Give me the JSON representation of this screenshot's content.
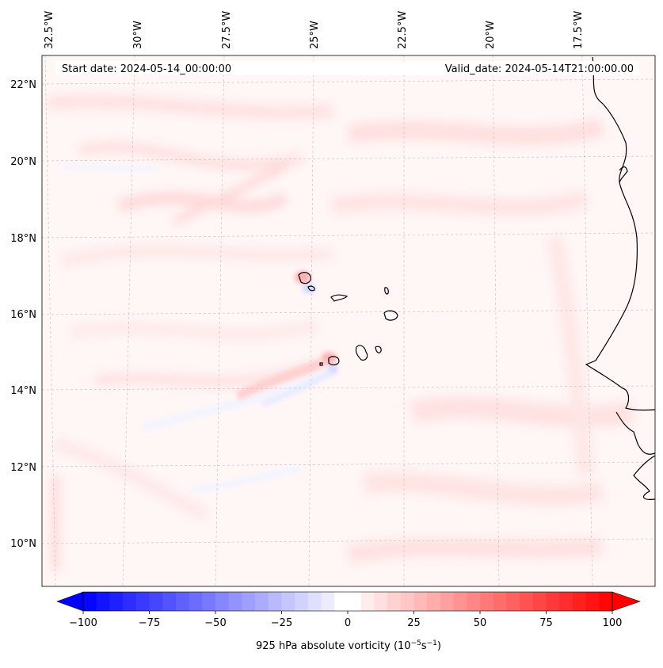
{
  "header": {
    "start_date": "Start date: 2024-05-14_00:00:00",
    "valid_date": "Valid_date: 2024-05-14T21:00:00.00"
  },
  "longitude_labels": [
    "32.5°W",
    "30°W",
    "27.5°W",
    "25°W",
    "22.5°W",
    "20°W",
    "17.5°W"
  ],
  "latitude_labels": [
    "22°N",
    "20°N",
    "18°N",
    "16°N",
    "14°N",
    "12°N",
    "10°N"
  ],
  "colorbar": {
    "label": "925 hPa absolute vorticity (10",
    "label_exp1": "−5",
    "label_mid": "s",
    "label_exp2": "−1",
    "label_end": ")",
    "ticks": [
      "−100",
      "−75",
      "−50",
      "−25",
      "0",
      "25",
      "50",
      "75",
      "100"
    ],
    "min": -100,
    "max": 100,
    "step": 5,
    "negative_color": "#0000ff",
    "positive_color": "#ff0000"
  },
  "colors": {
    "land_outline": "#000000",
    "gridline": "#bfbfbf",
    "field_base": "#fff6f6"
  }
}
